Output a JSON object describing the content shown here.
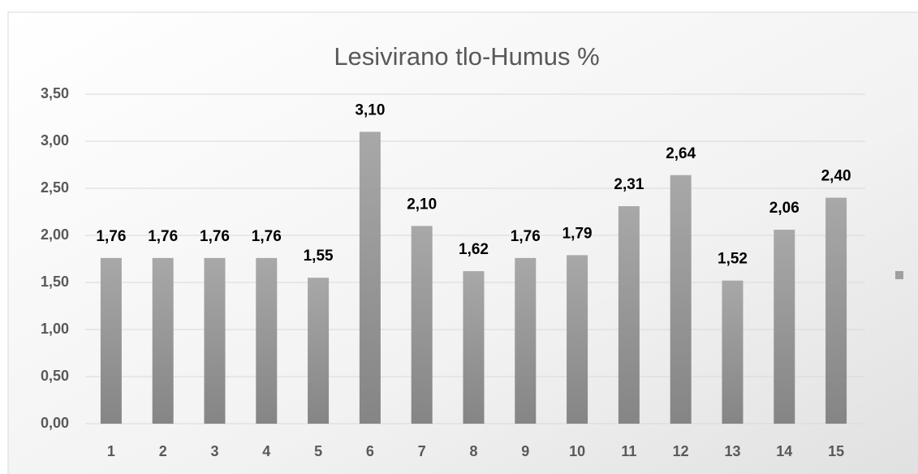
{
  "chart_data": {
    "type": "bar",
    "title": "Lesivirano tlo-Humus %",
    "categories": [
      "1",
      "2",
      "3",
      "4",
      "5",
      "6",
      "7",
      "8",
      "9",
      "10",
      "11",
      "12",
      "13",
      "14",
      "15"
    ],
    "values": [
      1.76,
      1.76,
      1.76,
      1.76,
      1.55,
      3.1,
      2.1,
      1.62,
      1.76,
      1.79,
      2.31,
      2.64,
      1.52,
      2.06,
      2.4
    ],
    "value_labels": [
      "1,76",
      "1,76",
      "1,76",
      "1,76",
      "1,55",
      "3,10",
      "2,10",
      "1,62",
      "1,76",
      "1,79",
      "2,31",
      "2,64",
      "1,52",
      "2,06",
      "2,40"
    ],
    "color": "#999999",
    "ylim": [
      0,
      3.5
    ],
    "yticks": [
      {
        "value": 0,
        "label": "0,00"
      },
      {
        "value": 0.5,
        "label": "0,50"
      },
      {
        "value": 1,
        "label": "1,00"
      },
      {
        "value": 1.5,
        "label": "1,50"
      },
      {
        "value": 2,
        "label": "2,00"
      },
      {
        "value": 2.5,
        "label": "2,50"
      },
      {
        "value": 3,
        "label": "3,00"
      },
      {
        "value": 3.5,
        "label": "3,50"
      }
    ],
    "grid": true
  }
}
